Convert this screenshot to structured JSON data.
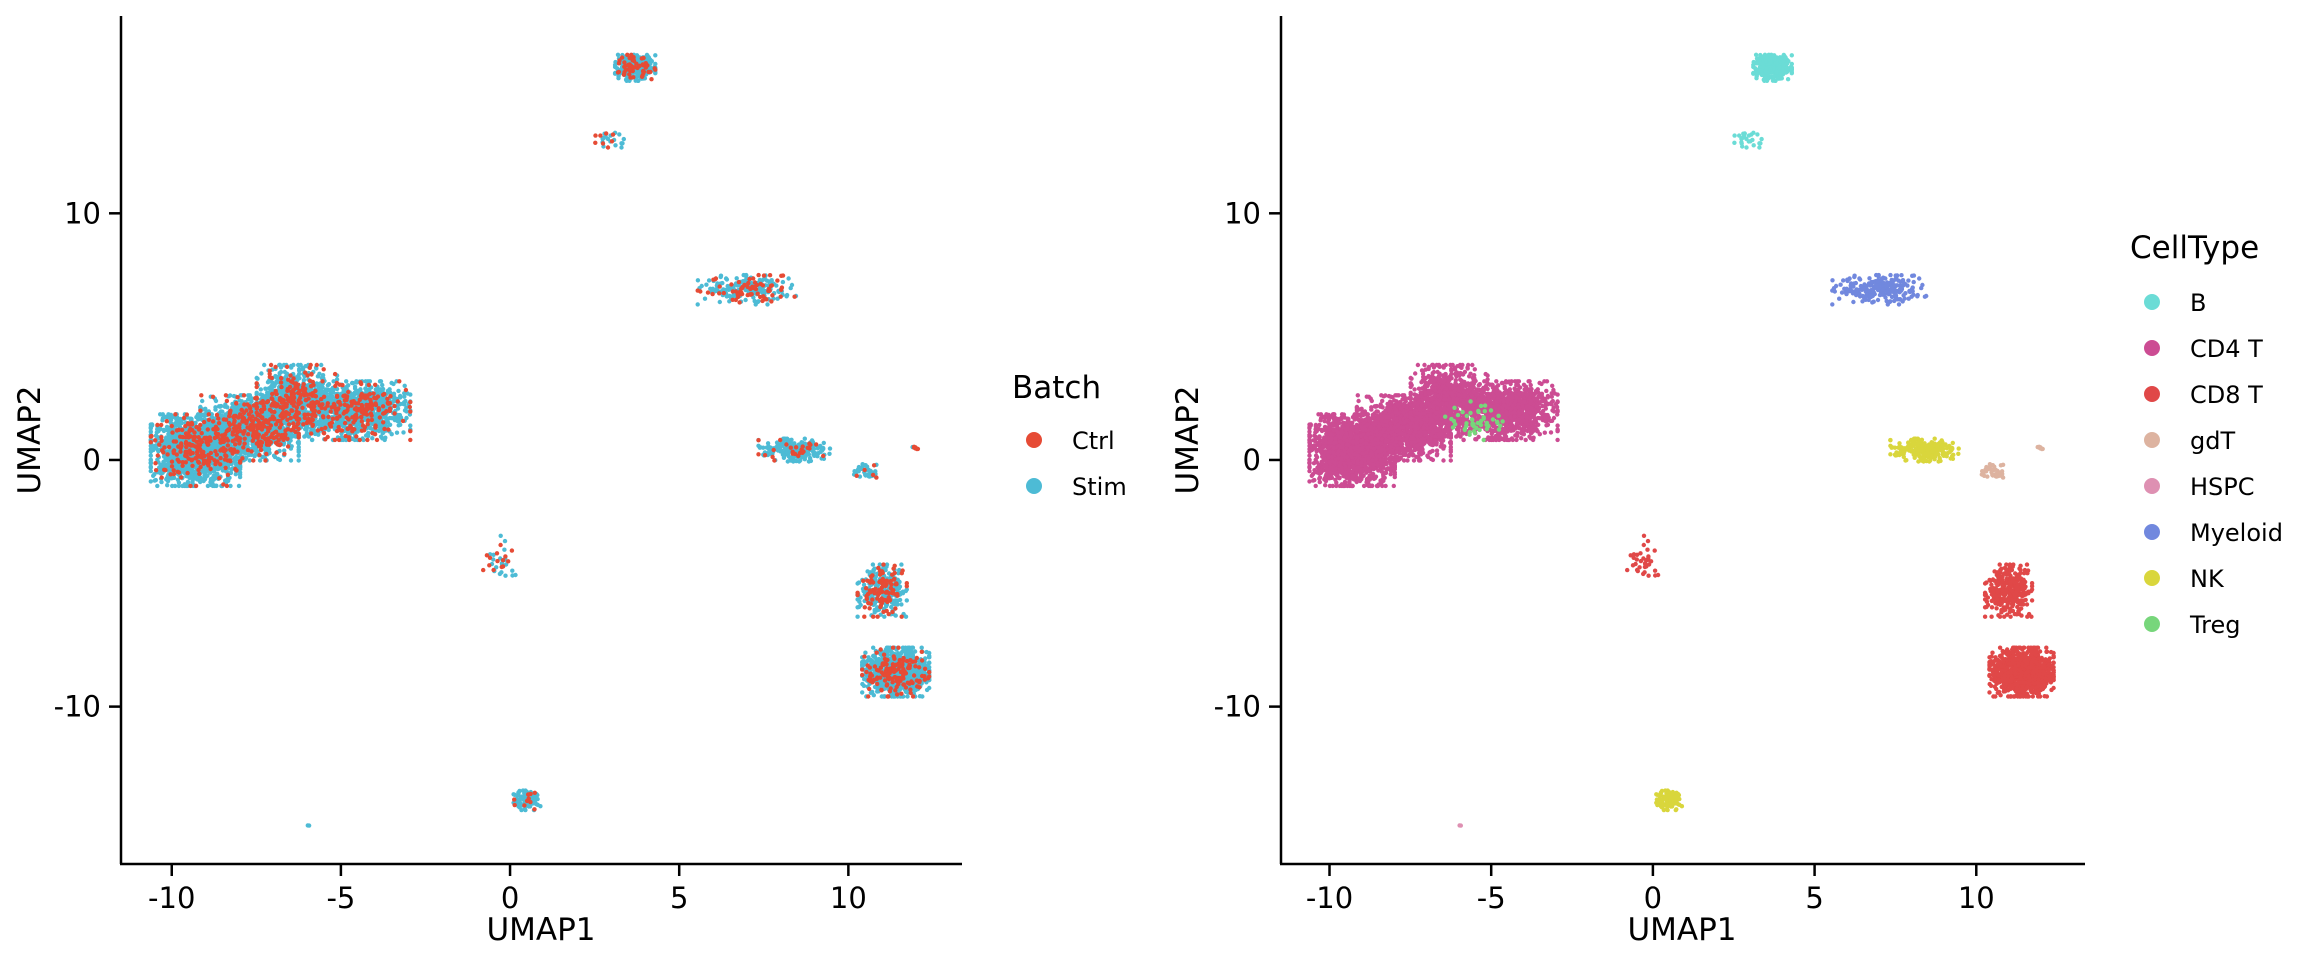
{
  "chart_data": [
    {
      "type": "scatter",
      "xlabel": "UMAP1",
      "ylabel": "UMAP2",
      "xlim": [
        -11.5,
        13.3
      ],
      "ylim": [
        -16.3,
        18.0
      ],
      "xticks": [
        -10,
        -5,
        0,
        5,
        10
      ],
      "xtick_labels": [
        "-10",
        "-5",
        "0",
        "5",
        "10"
      ],
      "yticks": [
        -10,
        0,
        10
      ],
      "ytick_labels": [
        "-10",
        "0",
        "10"
      ],
      "legend": {
        "title": "Batch",
        "placement": "right",
        "entries": [
          {
            "label": "Ctrl",
            "color": "#E64B35"
          },
          {
            "label": "Stim",
            "color": "#4DBBD5"
          }
        ]
      },
      "grid": false
    },
    {
      "type": "scatter",
      "xlabel": "UMAP1",
      "ylabel": "UMAP2",
      "xlim": [
        -11.5,
        13.3
      ],
      "ylim": [
        -16.3,
        18.0
      ],
      "xticks": [
        -10,
        -5,
        0,
        5,
        10
      ],
      "xtick_labels": [
        "-10",
        "-5",
        "0",
        "5",
        "10"
      ],
      "yticks": [
        -10,
        0,
        10
      ],
      "ytick_labels": [
        "-10",
        "0",
        "10"
      ],
      "legend": {
        "title": "CellType",
        "placement": "right",
        "entries": [
          {
            "label": "B",
            "color": "#6BDCD6"
          },
          {
            "label": "CD4 T",
            "color": "#CC4C93"
          },
          {
            "label": "CD8 T",
            "color": "#E04848"
          },
          {
            "label": "gdT",
            "color": "#DDB3A0"
          },
          {
            "label": "HSPC",
            "color": "#DE90B2"
          },
          {
            "label": "Myeloid",
            "color": "#7188DE"
          },
          {
            "label": "NK",
            "color": "#D9D63C"
          },
          {
            "label": "Treg",
            "color": "#77D67B"
          }
        ]
      },
      "grid": false
    }
  ],
  "clusters": [
    {
      "name": "cd4-main-left",
      "cx": -9.3,
      "cy": 0.4,
      "rx": 1.0,
      "ry": 1.1,
      "n": 1700,
      "type": "CD4 T",
      "ctrl": 0.12
    },
    {
      "name": "cd4-main-mid",
      "cx": -7.7,
      "cy": 1.3,
      "rx": 1.1,
      "ry": 1.0,
      "n": 1200,
      "type": "CD4 T",
      "ctrl": 0.2
    },
    {
      "name": "cd4-main-upper",
      "cx": -6.3,
      "cy": 2.4,
      "rx": 0.9,
      "ry": 1.1,
      "n": 900,
      "type": "CD4 T",
      "ctrl": 0.22
    },
    {
      "name": "cd4-main-right",
      "cx": -4.4,
      "cy": 2.0,
      "rx": 1.1,
      "ry": 0.9,
      "n": 1000,
      "type": "CD4 T",
      "ctrl": 0.18
    },
    {
      "name": "b-top",
      "cx": 3.7,
      "cy": 15.9,
      "rx": 0.45,
      "ry": 0.4,
      "n": 380,
      "type": "B",
      "ctrl": 0.15
    },
    {
      "name": "b-streak",
      "cx": 2.9,
      "cy": 13.0,
      "rx": 0.35,
      "ry": 0.25,
      "n": 25,
      "type": "B",
      "ctrl": 0.3
    },
    {
      "name": "myeloid-arc",
      "cx": 7.0,
      "cy": 6.9,
      "rx": 1.1,
      "ry": 0.45,
      "n": 240,
      "type": "Myeloid",
      "ctrl": 0.3
    },
    {
      "name": "nk-right",
      "cx": 8.4,
      "cy": 0.4,
      "rx": 0.8,
      "ry": 0.35,
      "n": 240,
      "type": "NK",
      "ctrl": 0.12
    },
    {
      "name": "gdt-small",
      "cx": 10.5,
      "cy": -0.5,
      "rx": 0.25,
      "ry": 0.25,
      "n": 35,
      "type": "gdT",
      "ctrl": 0.1
    },
    {
      "name": "cd8-upper",
      "cx": 11.0,
      "cy": -5.3,
      "rx": 0.55,
      "ry": 0.8,
      "n": 340,
      "type": "CD8 T",
      "ctrl": 0.3
    },
    {
      "name": "cd8-lower",
      "cx": 11.4,
      "cy": -8.6,
      "rx": 0.75,
      "ry": 0.75,
      "n": 1100,
      "type": "CD8 T",
      "ctrl": 0.12
    },
    {
      "name": "nk-bottom",
      "cx": 0.5,
      "cy": -13.8,
      "rx": 0.3,
      "ry": 0.3,
      "n": 110,
      "type": "NK",
      "ctrl": 0.1
    },
    {
      "name": "cd8-streak",
      "cx": -0.3,
      "cy": -4.0,
      "rx": 0.5,
      "ry": 0.7,
      "n": 35,
      "type": "CD8 T",
      "ctrl": 0.35
    },
    {
      "name": "gdt-far-right",
      "cx": 12.0,
      "cy": 0.5,
      "rx": 0.12,
      "ry": 0.12,
      "n": 8,
      "type": "gdT",
      "ctrl": 0.9
    },
    {
      "name": "hspc-single",
      "cx": -6.0,
      "cy": -14.8,
      "rx": 0.05,
      "ry": 0.05,
      "n": 2,
      "type": "HSPC",
      "ctrl": 0.0
    },
    {
      "name": "treg-in-main",
      "cx": -5.5,
      "cy": 1.6,
      "rx": 0.7,
      "ry": 0.6,
      "n": 50,
      "type": "Treg",
      "ctrl": 0.2
    }
  ]
}
